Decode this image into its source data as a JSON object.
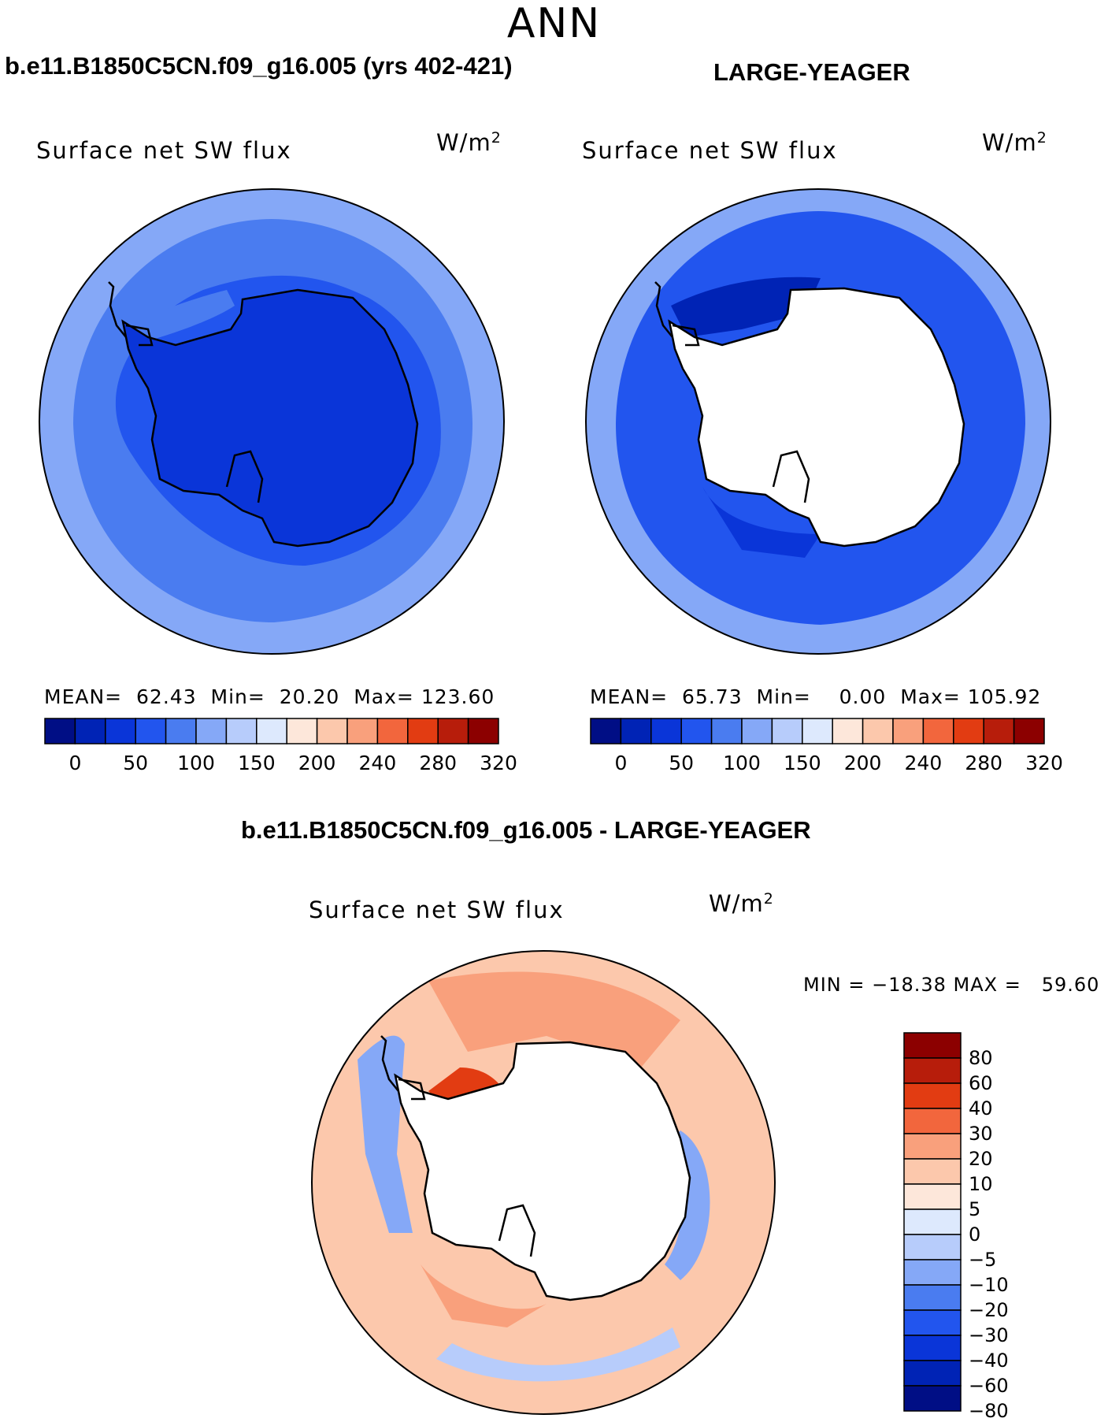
{
  "figure": {
    "title": "ANN"
  },
  "panels": [
    {
      "case_title": "b.e11.B1850C5CN.f09_g16.005 (yrs 402-421)",
      "label": "Surface net SW flux",
      "units": "W/m",
      "units_exp": "2",
      "stats": {
        "mean_label": "MEAN=",
        "mean": "62.43",
        "min_label": "Min=",
        "min": "20.20",
        "max_label": "Max=",
        "max": "123.60"
      }
    },
    {
      "case_title": "LARGE-YEAGER",
      "label": "Surface net SW flux",
      "units": "W/m",
      "units_exp": "2",
      "stats": {
        "mean_label": "MEAN=",
        "mean": "65.73",
        "min_label": "Min=",
        "min": "0.00",
        "max_label": "Max=",
        "max": "105.92"
      }
    },
    {
      "case_title": "b.e11.B1850C5CN.f09_g16.005 - LARGE-YEAGER",
      "label": "Surface net SW flux",
      "units": "W/m",
      "units_exp": "2",
      "minmax": "MIN = −18.38 MAX =   59.60"
    }
  ],
  "colorbar_abs": {
    "colors": [
      "#000e85",
      "#0023b5",
      "#0a35d8",
      "#2255ee",
      "#4a7cf0",
      "#85a8f7",
      "#b7ccfb",
      "#dde9fd",
      "#fde7da",
      "#fcc8ac",
      "#f9a07c",
      "#f2663d",
      "#e23c12",
      "#b71d0b",
      "#8c0000"
    ],
    "labels": [
      "0",
      "50",
      "100",
      "150",
      "200",
      "240",
      "280",
      "320"
    ]
  },
  "colorbar_diff": {
    "colors": [
      "#8c0000",
      "#b71d0b",
      "#e23c12",
      "#f2663d",
      "#f9a07c",
      "#fcc8ac",
      "#fde7da",
      "#dde9fd",
      "#b7ccfb",
      "#85a8f7",
      "#4a7cf0",
      "#2255ee",
      "#0a35d8",
      "#0023b5",
      "#000e85"
    ],
    "labels": [
      "80",
      "60",
      "40",
      "30",
      "20",
      "10",
      "5",
      "0",
      "−5",
      "−10",
      "−20",
      "−30",
      "−40",
      "−60",
      "−80"
    ]
  }
}
